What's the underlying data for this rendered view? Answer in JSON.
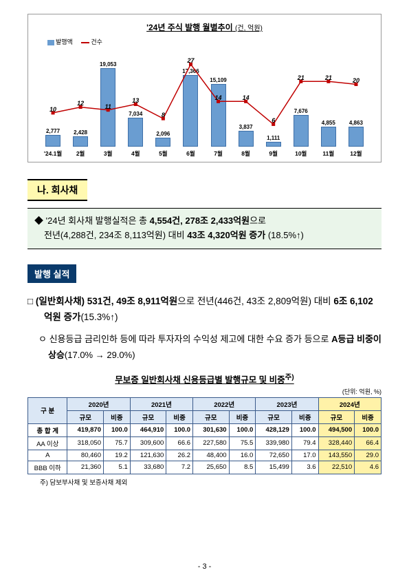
{
  "chart": {
    "title_main": "'24년 주식 발행 월별추이",
    "title_unit": "(건, 억원)",
    "legend_bar": "발행액",
    "legend_line": "건수",
    "months": [
      "'24.1월",
      "2월",
      "3월",
      "4월",
      "5월",
      "6월",
      "7월",
      "8월",
      "9월",
      "10월",
      "11월",
      "12월"
    ],
    "bar_values": [
      2777,
      2428,
      19053,
      7034,
      2096,
      17366,
      15109,
      3837,
      1111,
      7676,
      4855,
      4863
    ],
    "line_values": [
      10,
      12,
      11,
      13,
      8,
      27,
      14,
      14,
      6,
      21,
      21,
      20
    ],
    "bar_labels": [
      "2,777",
      "2,428",
      "19,053",
      "7,034",
      "2,096",
      "17,366",
      "15,109",
      "3,837",
      "1,111",
      "7,676",
      "4,855",
      "4,863"
    ],
    "line_labels": [
      "10",
      "12",
      "11",
      "13",
      "8",
      "27",
      "14",
      "14",
      "6",
      "21",
      "21",
      "20"
    ],
    "bar_max": 20000,
    "line_max": 30,
    "bar_color": "#6a9dd1",
    "line_color": "#c00000"
  },
  "section_tab": "나. 회사채",
  "callout": {
    "diamond": "◆",
    "line1a": "'24년 회사채 발행실적은 총 ",
    "line1b": "4,554건, 278조 2,433억원",
    "line1c": "으로",
    "line2a": "전년(4,288건, 234조 8,113억원) 대비 ",
    "line2b": "43조 4,320억원 증가",
    "line2c": " (18.5%↑)"
  },
  "heading": "발행 실적",
  "para1": {
    "box": "□",
    "t1": "(일반회사채) 531건, 49조 8,911억원",
    "t2": "으로 전년(446건, 43조 2,809억원) 대비 ",
    "t3": "6조 6,102억원 증가",
    "t4": "(15.3%↑)"
  },
  "sub1": {
    "bullet": "ㅇ",
    "boxed": "신용등급",
    "rest": " 금리인하 등에 따라 투자자의 수익성 제고에 대한 수요 증가 등으로 ",
    "bold": "A등급 비중이 상승",
    "tail": "(17.0% → 29.0%)"
  },
  "table": {
    "title": "무보증 일반회사채 신용등급별 발행규모 및 비중",
    "sup": "주)",
    "unit": "(단위: 억원, %)",
    "col_group": "구 분",
    "years": [
      "2020년",
      "2021년",
      "2022년",
      "2023년",
      "2024년"
    ],
    "sub_cols": [
      "규모",
      "비중"
    ],
    "rows": [
      {
        "label": "총 합 계",
        "cells": [
          "419,870",
          "100.0",
          "464,910",
          "100.0",
          "301,630",
          "100.0",
          "428,129",
          "100.0",
          "494,500",
          "100.0"
        ],
        "bold": true
      },
      {
        "label": "AA 이상",
        "cells": [
          "318,050",
          "75.7",
          "309,600",
          "66.6",
          "227,580",
          "75.5",
          "339,980",
          "79.4",
          "328,440",
          "66.4"
        ]
      },
      {
        "label": "A",
        "cells": [
          "80,460",
          "19.2",
          "121,630",
          "26.2",
          "48,400",
          "16.0",
          "72,650",
          "17.0",
          "143,550",
          "29.0"
        ]
      },
      {
        "label": "BBB 이하",
        "cells": [
          "21,360",
          "5.1",
          "33,680",
          "7.2",
          "25,650",
          "8.5",
          "15,499",
          "3.6",
          "22,510",
          "4.6"
        ]
      }
    ],
    "footnote": "주) 담보부사채 및 보증사채 제외"
  },
  "page": "- 3 -"
}
